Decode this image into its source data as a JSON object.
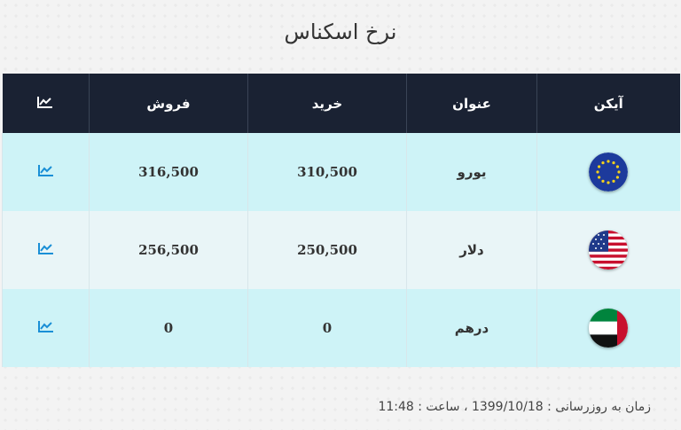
{
  "title": "نرخ اسکناس",
  "table": {
    "headers": {
      "icon": "آیکن",
      "name": "عنوان",
      "buy": "خرید",
      "sell": "فروش"
    },
    "rows": [
      {
        "icon": "eu-flag-icon",
        "name": "یورو",
        "buy": "310,500",
        "sell": "316,500"
      },
      {
        "icon": "us-flag-icon",
        "name": "دلار",
        "buy": "250,500",
        "sell": "256,500"
      },
      {
        "icon": "uae-flag-icon",
        "name": "درهم",
        "buy": "0",
        "sell": "0"
      }
    ]
  },
  "footer": {
    "updated_text": "زمان به روزرسانی : 1399/10/18 ، ساعت : 11:48"
  },
  "colors": {
    "header_bg": "#1a2233",
    "row_odd": "#cef3f7",
    "row_even": "#e9f5f7",
    "chart_icon": "#1a8fd6"
  }
}
